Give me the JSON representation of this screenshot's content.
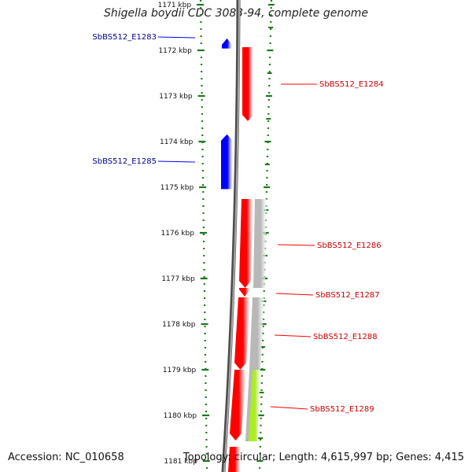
{
  "title": "Shigella boydii CDC 3083-94, complete genome",
  "footer": {
    "accession": "Accession: NC_010658",
    "summary": "Topology: circular; Length: 4,615,997 bp; Genes: 4,415"
  },
  "colors": {
    "forward_gene": "#0000ff",
    "reverse_gene": "#ff0000",
    "highlight_gene": "#aaee22",
    "other_feature": "#b8b8b8",
    "backbone": "#7a7a7a",
    "ticks": "#1a7a1a",
    "label_forward": "#00008b",
    "label_reverse": "#cc0000"
  },
  "chart_data": {
    "type": "genome_map",
    "range_kbp": [
      1171,
      1181
    ],
    "ticks": [
      {
        "kbp": 1171,
        "label": "1171 kbp"
      },
      {
        "kbp": 1172,
        "label": "1172 kbp"
      },
      {
        "kbp": 1173,
        "label": "1173 kbp"
      },
      {
        "kbp": 1174,
        "label": "1174 kbp"
      },
      {
        "kbp": 1175,
        "label": "1175 kbp"
      },
      {
        "kbp": 1176,
        "label": "1176 kbp"
      },
      {
        "kbp": 1177,
        "label": "1177 kbp"
      },
      {
        "kbp": 1178,
        "label": "1178 kbp"
      },
      {
        "kbp": 1179,
        "label": "1179 kbp"
      },
      {
        "kbp": 1180,
        "label": "1180 kbp"
      },
      {
        "kbp": 1181,
        "label": "1181 kbp"
      }
    ],
    "genes": [
      {
        "name": "SbBS512_E1283",
        "strand": "+",
        "start_kbp": 1171.74,
        "end_kbp": 1171.96
      },
      {
        "name": "SbBS512_E1284",
        "strand": "-",
        "start_kbp": 1171.93,
        "end_kbp": 1173.55
      },
      {
        "name": "SbBS512_E1285",
        "strand": "+",
        "start_kbp": 1173.84,
        "end_kbp": 1175.04
      },
      {
        "name": "SbBS512_E1286",
        "strand": "-",
        "start_kbp": 1176.3,
        "end_kbp": 1176.33
      },
      {
        "name": "SbBS512_E1287",
        "strand": "-",
        "start_kbp": 1176.23,
        "end_kbp": 1177.37
      },
      {
        "name": "SbBS512_E1288",
        "strand": "-",
        "start_kbp": 1177.37,
        "end_kbp": 1179.0
      },
      {
        "name": "SbBS512_E1289",
        "strand": "-",
        "start_kbp": 1179.0,
        "end_kbp": 1180.95
      }
    ]
  }
}
